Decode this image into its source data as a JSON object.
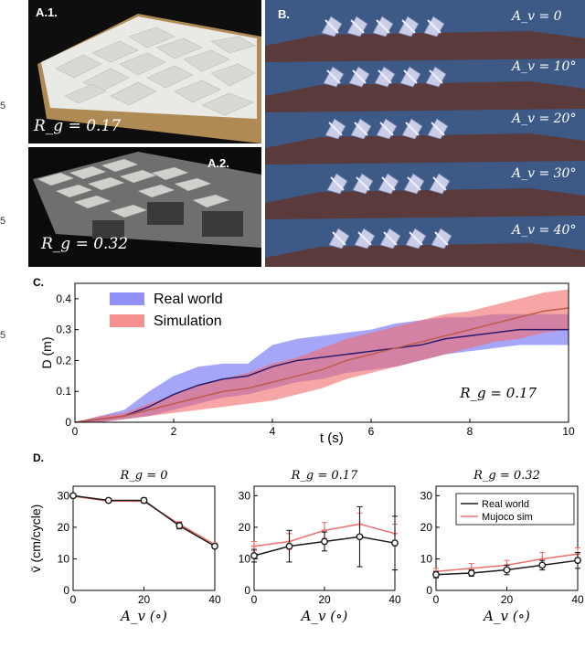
{
  "edge_numbers": [
    "5",
    "5",
    "5"
  ],
  "panels": {
    "a1": {
      "tag": "A.1.",
      "rg": "R_g = 0.17"
    },
    "a2": {
      "tag": "A.2.",
      "rg": "R_g = 0.32"
    },
    "b": {
      "tag": "B.",
      "rows": [
        "A_v = 0",
        "A_v = 10°",
        "A_v = 20°",
        "A_v = 30°",
        "A_v = 40°"
      ]
    },
    "c": {
      "letter": "C.",
      "annotation": "R_g = 0.17"
    },
    "d": {
      "letter": "D."
    }
  },
  "colors": {
    "real_world": "#1a1a1a",
    "real_world_band": "#6b6bf5",
    "simulation_band": "#f26b6b",
    "sim_line": "#f07070",
    "mean_line_real": "#2a1a6a",
    "mean_line_sim": "#c05a4a",
    "water": "#3d5a87",
    "platform": "#5a3a3a"
  },
  "chart_data": [
    {
      "id": "C",
      "type": "area",
      "title": "",
      "xlabel": "t (s)",
      "ylabel": "D (m)",
      "xlim": [
        0,
        10
      ],
      "ylim": [
        0,
        0.45
      ],
      "xticks": [
        0,
        2,
        4,
        6,
        8,
        10
      ],
      "yticks": [
        0,
        0.1,
        0.2,
        0.3,
        0.4
      ],
      "legend": "top-left",
      "x": [
        0,
        0.5,
        1,
        1.5,
        2,
        2.5,
        3,
        3.5,
        4,
        4.5,
        5,
        5.5,
        6,
        6.5,
        7,
        7.5,
        8,
        8.5,
        9,
        9.5,
        10
      ],
      "series": [
        {
          "name": "Real world",
          "mean": [
            0,
            0.01,
            0.02,
            0.05,
            0.09,
            0.12,
            0.14,
            0.15,
            0.18,
            0.2,
            0.21,
            0.22,
            0.23,
            0.24,
            0.25,
            0.27,
            0.28,
            0.29,
            0.3,
            0.3,
            0.3
          ],
          "lower": [
            0,
            0.0,
            0.01,
            0.02,
            0.04,
            0.06,
            0.08,
            0.09,
            0.11,
            0.13,
            0.14,
            0.16,
            0.17,
            0.18,
            0.2,
            0.22,
            0.23,
            0.24,
            0.25,
            0.25,
            0.25
          ],
          "upper": [
            0,
            0.02,
            0.04,
            0.1,
            0.15,
            0.18,
            0.19,
            0.19,
            0.25,
            0.27,
            0.28,
            0.29,
            0.3,
            0.32,
            0.33,
            0.34,
            0.34,
            0.35,
            0.35,
            0.35,
            0.35
          ]
        },
        {
          "name": "Simulation",
          "mean": [
            0,
            0.01,
            0.02,
            0.04,
            0.06,
            0.08,
            0.1,
            0.11,
            0.13,
            0.15,
            0.17,
            0.2,
            0.22,
            0.24,
            0.26,
            0.28,
            0.3,
            0.32,
            0.34,
            0.36,
            0.37
          ],
          "lower": [
            0,
            0.0,
            0.01,
            0.02,
            0.03,
            0.04,
            0.05,
            0.06,
            0.07,
            0.09,
            0.11,
            0.14,
            0.16,
            0.18,
            0.2,
            0.22,
            0.24,
            0.26,
            0.27,
            0.29,
            0.3
          ],
          "upper": [
            0,
            0.02,
            0.03,
            0.06,
            0.09,
            0.12,
            0.14,
            0.16,
            0.19,
            0.21,
            0.24,
            0.27,
            0.29,
            0.31,
            0.33,
            0.35,
            0.36,
            0.38,
            0.4,
            0.42,
            0.43
          ]
        }
      ],
      "annotation": "R_g = 0.17"
    },
    {
      "id": "D1",
      "type": "line",
      "title": "R_g = 0",
      "xlabel": "A_v (∘)",
      "ylabel": "v̄ (cm/cycle)",
      "xlim": [
        0,
        40
      ],
      "ylim": [
        0,
        33
      ],
      "xticks": [
        0,
        20,
        40
      ],
      "yticks": [
        0,
        10,
        20,
        30
      ],
      "x": [
        0,
        10,
        20,
        30,
        40
      ],
      "series": [
        {
          "name": "Real world",
          "values": [
            30,
            28.5,
            28.5,
            20.5,
            14
          ],
          "err": [
            0.4,
            0.6,
            0.8,
            1.0,
            0.6
          ]
        },
        {
          "name": "Mujoco sim",
          "values": [
            29.8,
            28.3,
            28.2,
            21.0,
            14.5
          ],
          "err": [
            0.3,
            0.5,
            0.6,
            0.8,
            0.5
          ]
        }
      ]
    },
    {
      "id": "D2",
      "type": "line",
      "title": "R_g = 0.17",
      "xlabel": "A_v (∘)",
      "ylabel": "",
      "xlim": [
        0,
        40
      ],
      "ylim": [
        0,
        33
      ],
      "xticks": [
        0,
        20,
        40
      ],
      "yticks": [
        0,
        10,
        20,
        30
      ],
      "x": [
        0,
        10,
        20,
        30,
        40
      ],
      "series": [
        {
          "name": "Real world",
          "values": [
            11,
            14,
            15.5,
            17,
            15
          ],
          "err": [
            2,
            5,
            3,
            9.5,
            8.5
          ]
        },
        {
          "name": "Mujoco sim",
          "values": [
            14,
            15.5,
            19,
            21,
            18
          ],
          "err": [
            1.5,
            2.5,
            2.5,
            3.5,
            3
          ]
        }
      ]
    },
    {
      "id": "D3",
      "type": "line",
      "title": "R_g = 0.32",
      "xlabel": "A_v (∘)",
      "ylabel": "",
      "xlim": [
        0,
        40
      ],
      "ylim": [
        0,
        33
      ],
      "xticks": [
        0,
        20,
        40
      ],
      "yticks": [
        0,
        10,
        20,
        30
      ],
      "legend": "top-right",
      "x": [
        0,
        10,
        20,
        30,
        40
      ],
      "series": [
        {
          "name": "Real world",
          "values": [
            5,
            5.5,
            6.5,
            8,
            9.5
          ],
          "err": [
            1,
            1,
            1.5,
            1.5,
            2.5
          ]
        },
        {
          "name": "Mujoco sim",
          "values": [
            6,
            7,
            8,
            10,
            11.5
          ],
          "err": [
            1,
            1.5,
            1.5,
            2,
            2
          ]
        }
      ]
    }
  ]
}
